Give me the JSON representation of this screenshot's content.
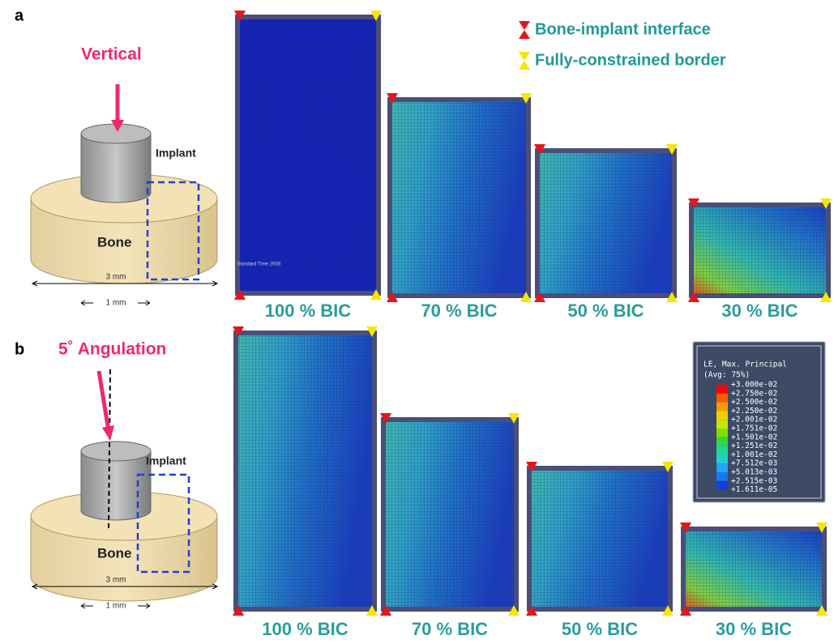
{
  "panels": [
    {
      "label": "a",
      "title": "Vertical",
      "implant": "Implant",
      "bone": "Bone",
      "width_total": "3 mm",
      "width_region": "1 mm",
      "models": [
        "100 % BIC",
        "70 % BIC",
        "50 % BIC",
        "30 % BIC"
      ],
      "watermark": "Standard Time 2008"
    },
    {
      "label": "b",
      "title": "5˚ Angulation",
      "implant": "Implant",
      "bone": "Bone",
      "width_total": "3 mm",
      "width_region": "1 mm",
      "models": [
        "100 % BIC",
        "70 % BIC",
        "50 % BIC",
        "30 % BIC"
      ]
    }
  ],
  "legend": {
    "bone_implant": "Bone-implant interface",
    "fully_constrained": "Fully-constrained border"
  },
  "colorbar": {
    "title": "LE, Max. Principal",
    "subtitle": "(Avg: 75%)",
    "levels": [
      "+3.000e-02",
      "+2.750e-02",
      "+2.500e-02",
      "+2.250e-02",
      "+2.001e-02",
      "+1.751e-02",
      "+1.501e-02",
      "+1.251e-02",
      "+1.001e-02",
      "+7.512e-03",
      "+5.013e-03",
      "+2.515e-03",
      "+1.611e-05"
    ]
  }
}
